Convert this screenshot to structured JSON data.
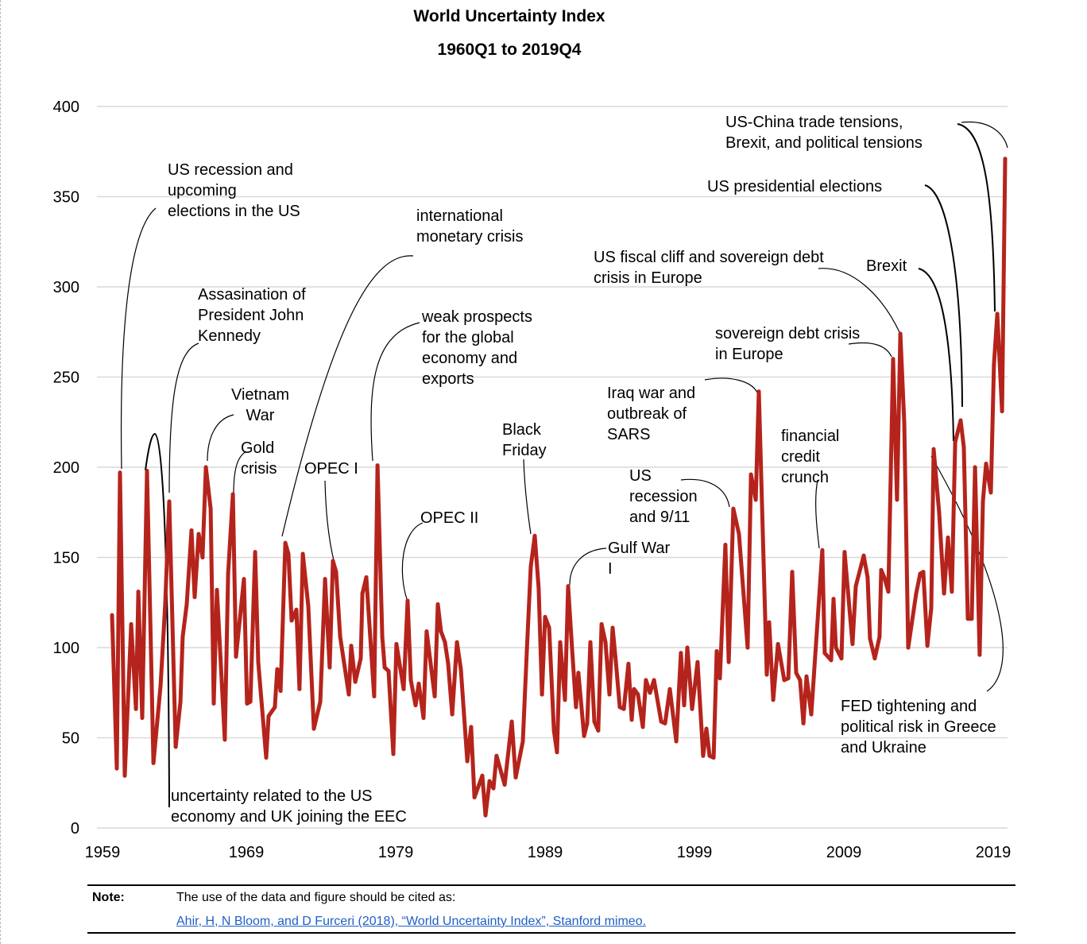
{
  "title": "World Uncertainty Index",
  "subtitle": "1960Q1 to 2019Q4",
  "chart_data": {
    "type": "line",
    "title": "World Uncertainty Index",
    "subtitle": "1960Q1 to 2019Q4",
    "xlabel": "",
    "ylabel": "",
    "xlim": [
      1959,
      2020
    ],
    "ylim": [
      0,
      400
    ],
    "x_ticks": [
      1959,
      1969,
      1979,
      1989,
      1999,
      2009,
      2019
    ],
    "y_ticks": [
      0,
      50,
      100,
      150,
      200,
      250,
      300,
      350,
      400
    ],
    "grid": "horizontal",
    "line_color": "#b5241c",
    "points": [
      [
        1960.01,
        118
      ],
      [
        1960.33,
        33
      ],
      [
        1960.54,
        197
      ],
      [
        1960.86,
        29
      ],
      [
        1961.29,
        113
      ],
      [
        1961.61,
        66
      ],
      [
        1961.77,
        131
      ],
      [
        1962.03,
        61
      ],
      [
        1962.35,
        198
      ],
      [
        1962.78,
        36
      ],
      [
        1963.26,
        79
      ],
      [
        1963.57,
        124
      ],
      [
        1963.84,
        181
      ],
      [
        1964.27,
        45
      ],
      [
        1964.59,
        70
      ],
      [
        1964.74,
        106
      ],
      [
        1965.01,
        124
      ],
      [
        1965.33,
        165
      ],
      [
        1965.54,
        128
      ],
      [
        1965.81,
        163
      ],
      [
        1966.07,
        150
      ],
      [
        1966.29,
        200
      ],
      [
        1966.61,
        177
      ],
      [
        1966.82,
        69
      ],
      [
        1967.03,
        132
      ],
      [
        1967.56,
        49
      ],
      [
        1967.78,
        141
      ],
      [
        1968.1,
        185
      ],
      [
        1968.31,
        95
      ],
      [
        1968.84,
        138
      ],
      [
        1969.05,
        69
      ],
      [
        1969.27,
        70
      ],
      [
        1969.59,
        153
      ],
      [
        1969.8,
        92
      ],
      [
        1970.33,
        39
      ],
      [
        1970.49,
        62
      ],
      [
        1970.91,
        67
      ],
      [
        1971.07,
        88
      ],
      [
        1971.29,
        76
      ],
      [
        1971.61,
        158
      ],
      [
        1971.82,
        152
      ],
      [
        1972.03,
        115
      ],
      [
        1972.35,
        121
      ],
      [
        1972.56,
        77
      ],
      [
        1972.78,
        152
      ],
      [
        1973.15,
        123
      ],
      [
        1973.52,
        55
      ],
      [
        1973.95,
        70
      ],
      [
        1974.27,
        138
      ],
      [
        1974.58,
        89
      ],
      [
        1974.8,
        148
      ],
      [
        1975.01,
        142
      ],
      [
        1975.28,
        106
      ],
      [
        1975.86,
        74
      ],
      [
        1976.02,
        101
      ],
      [
        1976.29,
        81
      ],
      [
        1976.66,
        94
      ],
      [
        1976.77,
        130
      ],
      [
        1977.03,
        139
      ],
      [
        1977.56,
        73
      ],
      [
        1977.78,
        201
      ],
      [
        1978.1,
        106
      ],
      [
        1978.26,
        89
      ],
      [
        1978.52,
        87
      ],
      [
        1978.84,
        41
      ],
      [
        1979.05,
        102
      ],
      [
        1979.53,
        77
      ],
      [
        1979.8,
        126
      ],
      [
        1980.01,
        82
      ],
      [
        1980.33,
        68
      ],
      [
        1980.54,
        80
      ],
      [
        1980.86,
        61
      ],
      [
        1981.07,
        109
      ],
      [
        1981.34,
        91
      ],
      [
        1981.61,
        73
      ],
      [
        1981.82,
        124
      ],
      [
        1982.03,
        109
      ],
      [
        1982.3,
        103
      ],
      [
        1982.51,
        91
      ],
      [
        1982.78,
        63
      ],
      [
        1983.1,
        103
      ],
      [
        1983.36,
        88
      ],
      [
        1983.79,
        37
      ],
      [
        1984.05,
        56
      ],
      [
        1984.27,
        17
      ],
      [
        1984.8,
        29
      ],
      [
        1985.01,
        7
      ],
      [
        1985.28,
        26
      ],
      [
        1985.54,
        22
      ],
      [
        1985.75,
        40
      ],
      [
        1986.29,
        24
      ],
      [
        1986.77,
        59
      ],
      [
        1987.03,
        28
      ],
      [
        1987.51,
        48
      ],
      [
        1987.78,
        99
      ],
      [
        1988.04,
        145
      ],
      [
        1988.31,
        162
      ],
      [
        1988.57,
        133
      ],
      [
        1988.79,
        74
      ],
      [
        1989.0,
        117
      ],
      [
        1989.27,
        111
      ],
      [
        1989.59,
        54
      ],
      [
        1989.8,
        42
      ],
      [
        1990.01,
        103
      ],
      [
        1990.33,
        71
      ],
      [
        1990.54,
        134
      ],
      [
        1990.81,
        99
      ],
      [
        1991.07,
        67
      ],
      [
        1991.23,
        86
      ],
      [
        1991.61,
        51
      ],
      [
        1991.82,
        58
      ],
      [
        1992.03,
        103
      ],
      [
        1992.3,
        59
      ],
      [
        1992.56,
        54
      ],
      [
        1992.78,
        113
      ],
      [
        1993.04,
        103
      ],
      [
        1993.31,
        74
      ],
      [
        1993.52,
        111
      ],
      [
        1993.73,
        93
      ],
      [
        1994.0,
        67
      ],
      [
        1994.27,
        66
      ],
      [
        1994.58,
        91
      ],
      [
        1994.8,
        60
      ],
      [
        1994.96,
        77
      ],
      [
        1995.22,
        74
      ],
      [
        1995.54,
        56
      ],
      [
        1995.75,
        82
      ],
      [
        1996.02,
        75
      ],
      [
        1996.29,
        82
      ],
      [
        1996.77,
        59
      ],
      [
        1997.03,
        58
      ],
      [
        1997.35,
        77
      ],
      [
        1997.78,
        48
      ],
      [
        1998.09,
        97
      ],
      [
        1998.31,
        68
      ],
      [
        1998.52,
        100
      ],
      [
        1998.84,
        66
      ],
      [
        1999.21,
        92
      ],
      [
        1999.58,
        40
      ],
      [
        1999.8,
        55
      ],
      [
        2000.01,
        40
      ],
      [
        2000.28,
        39
      ],
      [
        2000.49,
        98
      ],
      [
        2000.7,
        83
      ],
      [
        2001.07,
        157
      ],
      [
        2001.29,
        92
      ],
      [
        2001.6,
        177
      ],
      [
        2001.98,
        163
      ],
      [
        2002.56,
        100
      ],
      [
        2002.78,
        196
      ],
      [
        2003.1,
        182
      ],
      [
        2003.31,
        242
      ],
      [
        2003.84,
        85
      ],
      [
        2004.0,
        114
      ],
      [
        2004.27,
        71
      ],
      [
        2004.59,
        102
      ],
      [
        2005.01,
        82
      ],
      [
        2005.28,
        83
      ],
      [
        2005.54,
        142
      ],
      [
        2005.81,
        86
      ],
      [
        2006.07,
        82
      ],
      [
        2006.29,
        58
      ],
      [
        2006.5,
        84
      ],
      [
        2006.82,
        63
      ],
      [
        2007.56,
        154
      ],
      [
        2007.72,
        97
      ],
      [
        2008.15,
        93
      ],
      [
        2008.31,
        127
      ],
      [
        2008.47,
        100
      ],
      [
        2008.84,
        94
      ],
      [
        2009.05,
        153
      ],
      [
        2009.58,
        102
      ],
      [
        2009.8,
        134
      ],
      [
        2010.33,
        151
      ],
      [
        2010.59,
        139
      ],
      [
        2010.75,
        105
      ],
      [
        2011.07,
        94
      ],
      [
        2011.39,
        106
      ],
      [
        2011.5,
        143
      ],
      [
        2011.71,
        139
      ],
      [
        2011.98,
        131
      ],
      [
        2012.3,
        260
      ],
      [
        2012.56,
        182
      ],
      [
        2012.78,
        274
      ],
      [
        2013.04,
        225
      ],
      [
        2013.31,
        100
      ],
      [
        2013.84,
        130
      ],
      [
        2014.11,
        141
      ],
      [
        2014.32,
        142
      ],
      [
        2014.59,
        101
      ],
      [
        2014.85,
        122
      ],
      [
        2015.01,
        210
      ],
      [
        2015.38,
        175
      ],
      [
        2015.71,
        130
      ],
      [
        2015.97,
        161
      ],
      [
        2016.23,
        131
      ],
      [
        2016.45,
        214
      ],
      [
        2016.82,
        226
      ],
      [
        2017.03,
        211
      ],
      [
        2017.3,
        116
      ],
      [
        2017.56,
        116
      ],
      [
        2017.78,
        200
      ],
      [
        2018.09,
        96
      ],
      [
        2018.31,
        181
      ],
      [
        2018.52,
        202
      ],
      [
        2018.84,
        186
      ],
      [
        2019.05,
        257
      ],
      [
        2019.27,
        285
      ],
      [
        2019.59,
        231
      ],
      [
        2019.8,
        371
      ]
    ],
    "annotations": [
      {
        "id": "us-recession-1960",
        "lines": [
          "US recession and",
          "upcoming",
          "elections in the US"
        ]
      },
      {
        "id": "kennedy",
        "lines": [
          "Assasination of",
          "President John",
          "Kennedy"
        ]
      },
      {
        "id": "vietnam",
        "lines": [
          "Vietnam",
          "War"
        ]
      },
      {
        "id": "gold",
        "lines": [
          "Gold",
          "crisis"
        ]
      },
      {
        "id": "opec1",
        "lines": [
          "OPEC I"
        ]
      },
      {
        "id": "monetary",
        "lines": [
          "international",
          "monetary crisis"
        ]
      },
      {
        "id": "weak-prospects",
        "lines": [
          "weak prospects",
          "for the global",
          "economy and",
          "exports"
        ]
      },
      {
        "id": "opec2",
        "lines": [
          "OPEC II"
        ]
      },
      {
        "id": "black-friday",
        "lines": [
          "Black",
          "Friday"
        ]
      },
      {
        "id": "gulf-war",
        "lines": [
          "Gulf War",
          "I"
        ]
      },
      {
        "id": "recession-911",
        "lines": [
          "US",
          "recession",
          "and 9/11"
        ]
      },
      {
        "id": "iraq",
        "lines": [
          "Iraq war and",
          "outbreak of",
          "SARS"
        ]
      },
      {
        "id": "credit-crunch",
        "lines": [
          "financial",
          "credit",
          "crunch"
        ]
      },
      {
        "id": "sovereign-debt",
        "lines": [
          "sovereign debt crisis",
          "in Europe"
        ]
      },
      {
        "id": "fiscal-cliff",
        "lines": [
          "US fiscal cliff and sovereign debt",
          "crisis in Europe"
        ]
      },
      {
        "id": "brexit",
        "lines": [
          "Brexit"
        ]
      },
      {
        "id": "us-elections",
        "lines": [
          "US presidential elections"
        ]
      },
      {
        "id": "us-china",
        "lines": [
          "US-China trade tensions,",
          "Brexit, and political tensions"
        ]
      },
      {
        "id": "fed",
        "lines": [
          "FED tightening and",
          "political risk in Greece",
          "and Ukraine"
        ]
      },
      {
        "id": "eec",
        "lines": [
          "uncertainty related to the US",
          "economy and UK joining the EEC"
        ]
      }
    ]
  },
  "footer": {
    "note_label": "Note:",
    "note_text": "The use of the data and figure should be cited as:",
    "citation_link": "Ahir, H, N Bloom, and D Furceri (2018), “World Uncertainty Index”, Stanford mimeo.",
    "link_color": "#1f5fc6"
  }
}
